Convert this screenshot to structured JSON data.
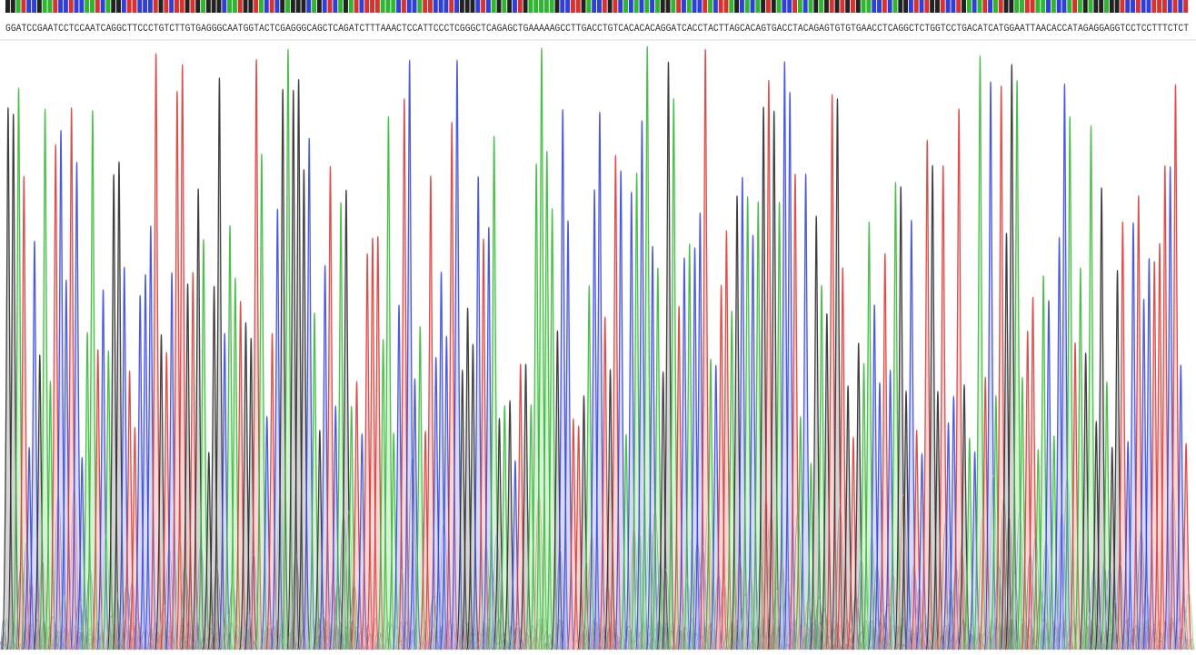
{
  "sequence": "GGATCCGAATCCTCCAATCAGGCTTCCCTGTCTTGTGAGGGCAATGGTACTCGAGGGCAGCTCAGATCTTTAAACTCCATTCCCTCGGGCTCAGAGCTGAAAAAGCCTTGACCTGTCACACACAGGATCACCTACTTAGCACAGTGACCTACAGAGTGTGTGAACCTCAGGCTCTGGTCCTGACATCATGGAATTAACACCATAGAGGAGGTCCTCCTTTCTCT"
}
